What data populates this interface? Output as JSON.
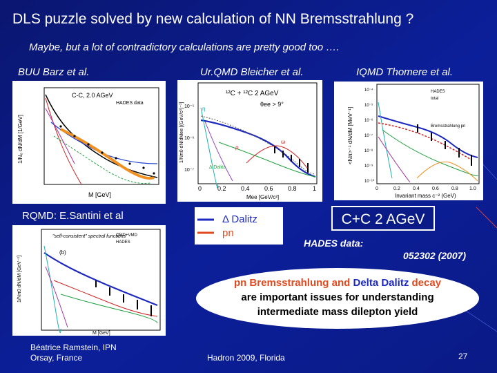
{
  "slide": {
    "title": "DLS  puzzle solved by new calculation of NN Bremsstrahlung ?",
    "subtitle": "Maybe, but a lot of contradictory calculations are pretty good too ….",
    "plot_labels": {
      "buu": "BUU Barz et al.",
      "urqmd": "Ur.QMD Bleicher et al.",
      "iqmd": "IQMD Thomere et al.",
      "rqmd": "RQMD: E.Santini et al"
    },
    "legend": {
      "delta_label": "Δ  Dalitz",
      "pn_label": "pn"
    },
    "cc_label": "C+C 2 AGeV",
    "hades_label": "HADES data:",
    "hades_ref": "052302 (2007)",
    "message": {
      "pn": "pn Bremsstrahlung",
      "and1": "and",
      "delta": "Delta Dalitz",
      "decay": "decay",
      "line2": "are important issues for understanding",
      "line3": "intermediate mass dilepton yield"
    },
    "footer": {
      "author_line1": "Béatrice Ramstein, IPN",
      "author_line2": "Orsay, France",
      "conference": "Hadron  2009, Florida",
      "page_number": "27"
    },
    "colors": {
      "background": "#0a1a86",
      "delta": "#1c28c0",
      "pn": "#e04a20"
    }
  },
  "plots": {
    "buu": {
      "ylabel": "1/N₀ dN/dM [1/GeV]",
      "xlabel": "M [GeV]",
      "header": "C-C, 2.0 AGeV",
      "data_label": "HADES data"
    },
    "urqmd": {
      "ylabel": "1/Nπ0 dN/dMee [(GeV/c²)⁻¹]",
      "xlabel": "Mee [GeV/c²]",
      "header": "¹²C + ¹²C 2 AGeV",
      "cut": "θee > 9°",
      "x_ticks": [
        "0",
        "0.2",
        "0.4",
        "0.6",
        "0.8",
        "1"
      ],
      "y_ticks": [
        "10⁻⁵",
        "10⁻⁶",
        "10⁻⁷"
      ],
      "labels": {
        "eta": "η",
        "delta": "Δ Dalitz",
        "rho": "ρ",
        "omega": "ω"
      }
    },
    "iqmd": {
      "ylabel": "<Nπ>⁻¹ dN/dM [MeV⁻¹]",
      "xlabel": "Invariant mass c⁻² (GeV)",
      "x_ticks": [
        "0",
        "0.2",
        "0.4",
        "0.6",
        "0.8",
        "1.0"
      ],
      "y_ticks": [
        "10⁻⁴",
        "10⁻⁵",
        "10⁻⁶",
        "10⁻⁷",
        "10⁻⁸",
        "10⁻⁹",
        "10⁻¹⁰"
      ],
      "legend": [
        "HADES",
        "total",
        "Bremsstrahlung pn"
      ]
    },
    "rqmd": {
      "ylabel": "1/Nπ0 dN/dM [GeV⁻¹]",
      "xlabel": "M [GeV]",
      "label": "\"self-consistent\" spectral functions",
      "panel": "(b)",
      "legend": [
        "QMD+VMD",
        "HADES"
      ]
    }
  }
}
